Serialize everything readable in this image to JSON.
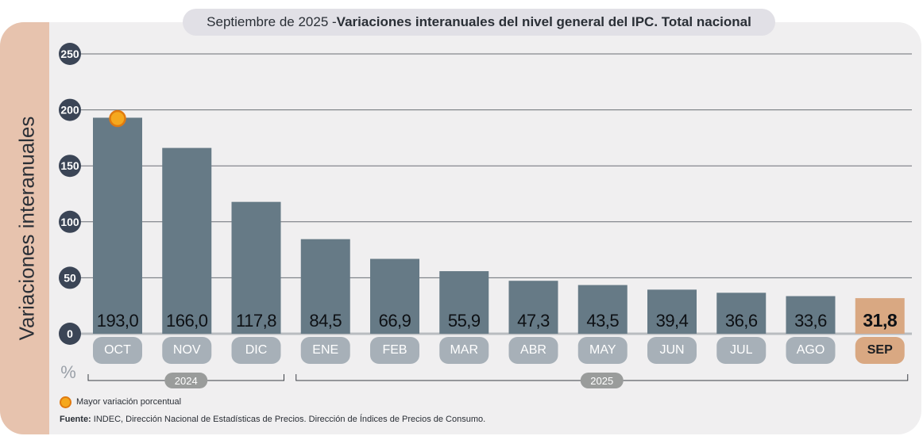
{
  "header": {
    "title_prefix": "Septiembre de 2025 - ",
    "title_main": "Variaciones interanuales del nivel general del IPC. Total nacional"
  },
  "y_axis_title": "Variaciones interanuales",
  "unit_symbol": "%",
  "legend": {
    "highlight_label": "Mayor variación porcentual"
  },
  "source": {
    "label": "Fuente:",
    "text": " INDEC, Dirección Nacional de Estadísticas de Precios. Dirección de Índices de Precios de Consumo."
  },
  "colors": {
    "bar": "#667a86",
    "highlight_bar": "#d9a882",
    "month_pill": "#a7b0b8",
    "axis_circle": "#3b4556",
    "grid": "#6a6f75",
    "year_pill": "#9a9c9b"
  },
  "chart_data": {
    "type": "bar",
    "title": "Septiembre de 2025 - Variaciones interanuales del nivel general del IPC. Total nacional",
    "ylabel": "Variaciones interanuales",
    "yunit": "%",
    "ylim": [
      0,
      250
    ],
    "yticks": [
      0,
      50,
      100,
      150,
      200,
      250
    ],
    "categories": [
      "OCT",
      "NOV",
      "DIC",
      "ENE",
      "FEB",
      "MAR",
      "ABR",
      "MAY",
      "JUN",
      "JUL",
      "AGO",
      "SEP"
    ],
    "values": [
      193.0,
      166.0,
      117.8,
      84.5,
      66.9,
      55.9,
      47.3,
      43.5,
      39.4,
      36.6,
      33.6,
      31.8
    ],
    "labels": [
      "193,0",
      "166,0",
      "117,8",
      "84,5",
      "66,9",
      "55,9",
      "47,3",
      "43,5",
      "39,4",
      "36,6",
      "33,6",
      "31,8"
    ],
    "highlight_index": 11,
    "max_marker_index": 0,
    "year_groups": [
      {
        "label": "2024",
        "start": 0,
        "end": 2
      },
      {
        "label": "2025",
        "start": 3,
        "end": 11
      }
    ]
  }
}
